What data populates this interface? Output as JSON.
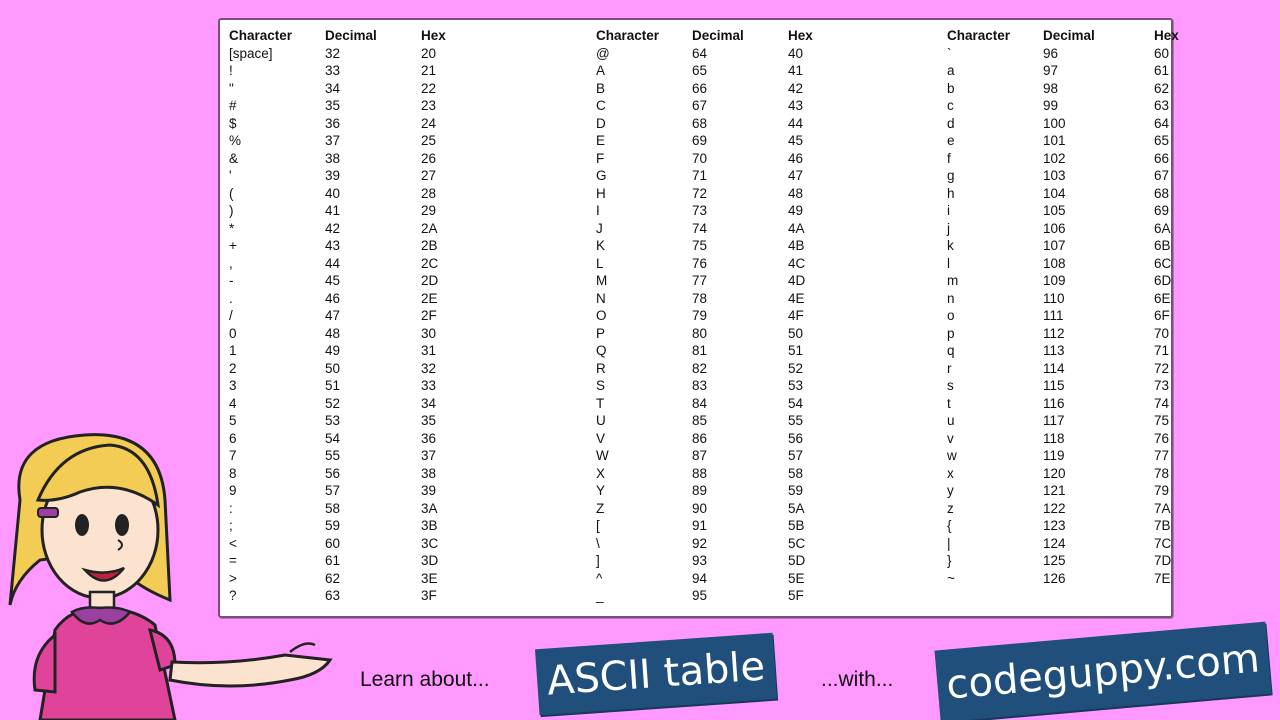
{
  "table": {
    "headers": [
      "Character",
      "Decimal",
      "Hex"
    ],
    "groups": [
      [
        [
          "[space]",
          "32",
          "20"
        ],
        [
          "!",
          "33",
          "21"
        ],
        [
          "\"",
          "34",
          "22"
        ],
        [
          "#",
          "35",
          "23"
        ],
        [
          "$",
          "36",
          "24"
        ],
        [
          "%",
          "37",
          "25"
        ],
        [
          "&",
          "38",
          "26"
        ],
        [
          "'",
          "39",
          "27"
        ],
        [
          "(",
          "40",
          "28"
        ],
        [
          ")",
          "41",
          "29"
        ],
        [
          "*",
          "42",
          "2A"
        ],
        [
          "+",
          "43",
          "2B"
        ],
        [
          ",",
          "44",
          "2C"
        ],
        [
          "-",
          "45",
          "2D"
        ],
        [
          ".",
          "46",
          "2E"
        ],
        [
          "/",
          "47",
          "2F"
        ],
        [
          "0",
          "48",
          "30"
        ],
        [
          "1",
          "49",
          "31"
        ],
        [
          "2",
          "50",
          "32"
        ],
        [
          "3",
          "51",
          "33"
        ],
        [
          "4",
          "52",
          "34"
        ],
        [
          "5",
          "53",
          "35"
        ],
        [
          "6",
          "54",
          "36"
        ],
        [
          "7",
          "55",
          "37"
        ],
        [
          "8",
          "56",
          "38"
        ],
        [
          "9",
          "57",
          "39"
        ],
        [
          ":",
          "58",
          "3A"
        ],
        [
          ";",
          "59",
          "3B"
        ],
        [
          "<",
          "60",
          "3C"
        ],
        [
          "=",
          "61",
          "3D"
        ],
        [
          ">",
          "62",
          "3E"
        ],
        [
          "?",
          "63",
          "3F"
        ]
      ],
      [
        [
          "@",
          "64",
          "40"
        ],
        [
          "A",
          "65",
          "41"
        ],
        [
          "B",
          "66",
          "42"
        ],
        [
          "C",
          "67",
          "43"
        ],
        [
          "D",
          "68",
          "44"
        ],
        [
          "E",
          "69",
          "45"
        ],
        [
          "F",
          "70",
          "46"
        ],
        [
          "G",
          "71",
          "47"
        ],
        [
          "H",
          "72",
          "48"
        ],
        [
          "I",
          "73",
          "49"
        ],
        [
          "J",
          "74",
          "4A"
        ],
        [
          "K",
          "75",
          "4B"
        ],
        [
          "L",
          "76",
          "4C"
        ],
        [
          "M",
          "77",
          "4D"
        ],
        [
          "N",
          "78",
          "4E"
        ],
        [
          "O",
          "79",
          "4F"
        ],
        [
          "P",
          "80",
          "50"
        ],
        [
          "Q",
          "81",
          "51"
        ],
        [
          "R",
          "82",
          "52"
        ],
        [
          "S",
          "83",
          "53"
        ],
        [
          "T",
          "84",
          "54"
        ],
        [
          "U",
          "85",
          "55"
        ],
        [
          "V",
          "86",
          "56"
        ],
        [
          "W",
          "87",
          "57"
        ],
        [
          "X",
          "88",
          "58"
        ],
        [
          "Y",
          "89",
          "59"
        ],
        [
          "Z",
          "90",
          "5A"
        ],
        [
          "[",
          "91",
          "5B"
        ],
        [
          "\\",
          "92",
          "5C"
        ],
        [
          "]",
          "93",
          "5D"
        ],
        [
          "^",
          "94",
          "5E"
        ],
        [
          "_",
          "95",
          "5F"
        ]
      ],
      [
        [
          "`",
          "96",
          "60"
        ],
        [
          "a",
          "97",
          "61"
        ],
        [
          "b",
          "98",
          "62"
        ],
        [
          "c",
          "99",
          "63"
        ],
        [
          "d",
          "100",
          "64"
        ],
        [
          "e",
          "101",
          "65"
        ],
        [
          "f",
          "102",
          "66"
        ],
        [
          "g",
          "103",
          "67"
        ],
        [
          "h",
          "104",
          "68"
        ],
        [
          "i",
          "105",
          "69"
        ],
        [
          "j",
          "106",
          "6A"
        ],
        [
          "k",
          "107",
          "6B"
        ],
        [
          "l",
          "108",
          "6C"
        ],
        [
          "m",
          "109",
          "6D"
        ],
        [
          "n",
          "110",
          "6E"
        ],
        [
          "o",
          "111",
          "6F"
        ],
        [
          "p",
          "112",
          "70"
        ],
        [
          "q",
          "113",
          "71"
        ],
        [
          "r",
          "114",
          "72"
        ],
        [
          "s",
          "115",
          "73"
        ],
        [
          "t",
          "116",
          "74"
        ],
        [
          "u",
          "117",
          "75"
        ],
        [
          "v",
          "118",
          "76"
        ],
        [
          "w",
          "119",
          "77"
        ],
        [
          "x",
          "120",
          "78"
        ],
        [
          "y",
          "121",
          "79"
        ],
        [
          "z",
          "122",
          "7A"
        ],
        [
          "{",
          "123",
          "7B"
        ],
        [
          "|",
          "124",
          "7C"
        ],
        [
          "}",
          "125",
          "7D"
        ],
        [
          "~",
          "126",
          "7E"
        ]
      ]
    ]
  },
  "footer": {
    "learn_text": "Learn about...",
    "ascii_banner": "ASCII table",
    "with_text": "...with...",
    "site_banner": "codeguppy.com"
  },
  "colors": {
    "background": "#ff99ff",
    "banner": "#1f4f7a",
    "girl_dress": "#e0439a",
    "girl_hair": "#f2cc55"
  },
  "icons": {
    "mascot": "girl-presenting-illustration"
  }
}
